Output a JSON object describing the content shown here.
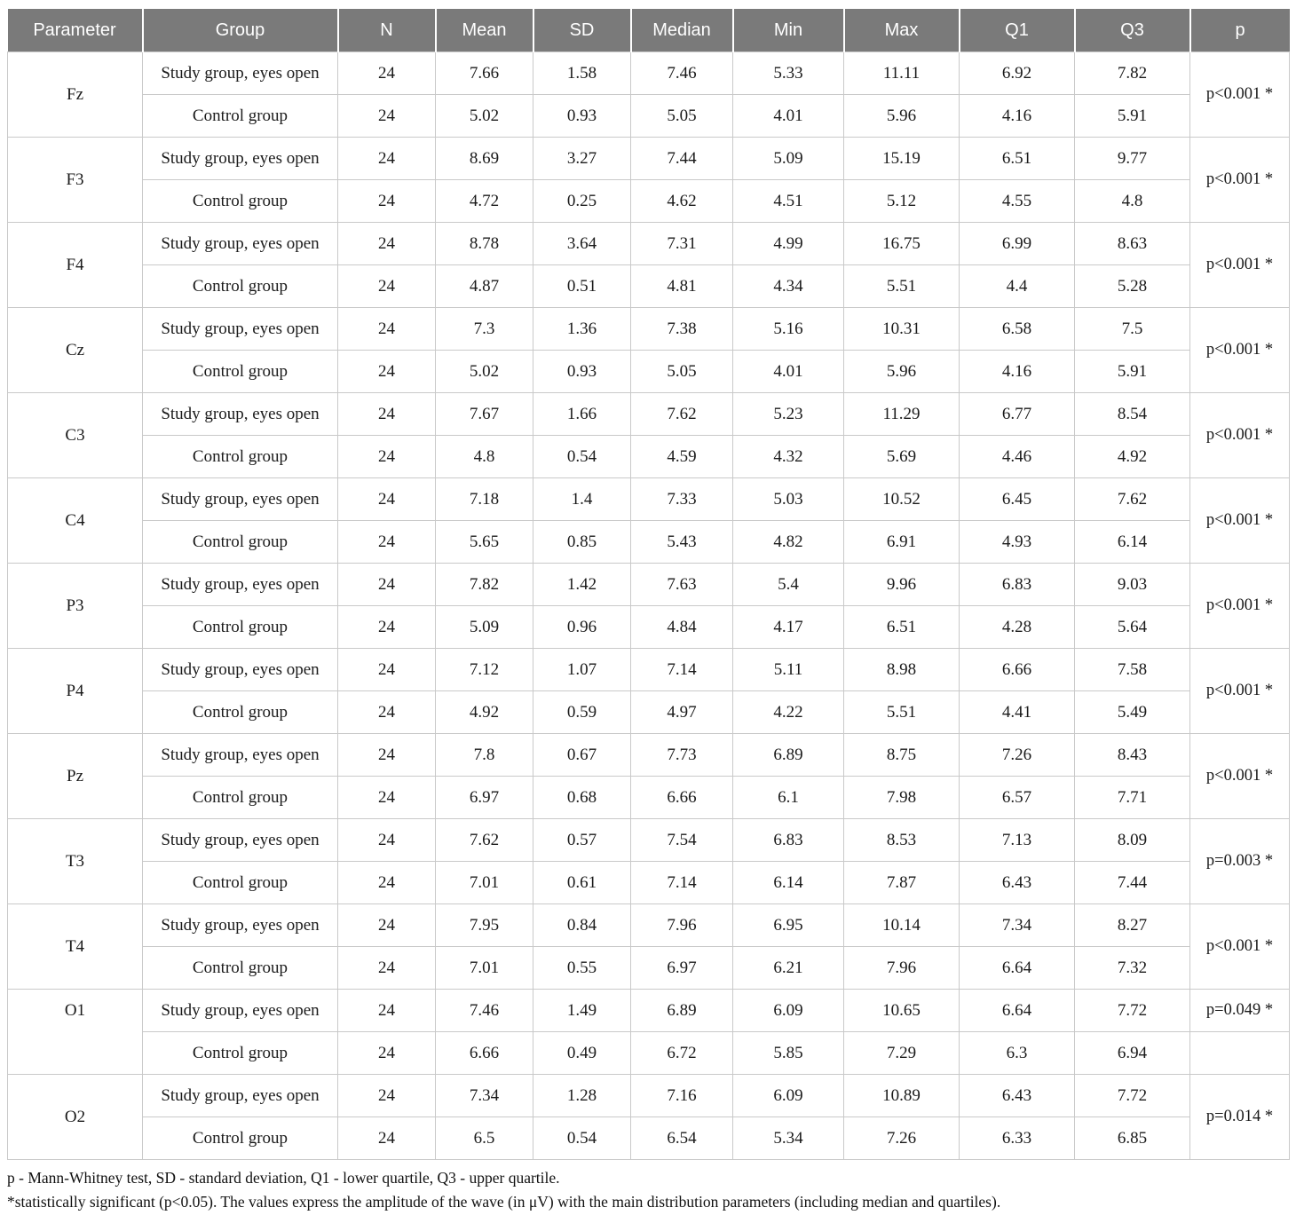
{
  "colors": {
    "header_bg": "#7a7a7a",
    "header_text": "#ffffff",
    "border": "#c9c9c9",
    "body_text": "#1a1a1a"
  },
  "table": {
    "headers": [
      "Parameter",
      "Group",
      "N",
      "Mean",
      "SD",
      "Median",
      "Min",
      "Max",
      "Q1",
      "Q3",
      "p"
    ],
    "blocks": [
      {
        "parameter": "Fz",
        "p": "p<0.001 *",
        "p_merged": true,
        "param_top": false,
        "rows": [
          {
            "group": "Study group, eyes open",
            "values": [
              "24",
              "7.66",
              "1.58",
              "7.46",
              "5.33",
              "11.11",
              "6.92",
              "7.82"
            ]
          },
          {
            "group": "Control group",
            "values": [
              "24",
              "5.02",
              "0.93",
              "5.05",
              "4.01",
              "5.96",
              "4.16",
              "5.91"
            ]
          }
        ]
      },
      {
        "parameter": "F3",
        "p": "p<0.001 *",
        "p_merged": true,
        "param_top": false,
        "rows": [
          {
            "group": "Study group, eyes open",
            "values": [
              "24",
              "8.69",
              "3.27",
              "7.44",
              "5.09",
              "15.19",
              "6.51",
              "9.77"
            ]
          },
          {
            "group": "Control group",
            "values": [
              "24",
              "4.72",
              "0.25",
              "4.62",
              "4.51",
              "5.12",
              "4.55",
              "4.8"
            ]
          }
        ]
      },
      {
        "parameter": "F4",
        "p": "p<0.001 *",
        "p_merged": true,
        "param_top": false,
        "rows": [
          {
            "group": "Study group, eyes open",
            "values": [
              "24",
              "8.78",
              "3.64",
              "7.31",
              "4.99",
              "16.75",
              "6.99",
              "8.63"
            ]
          },
          {
            "group": "Control group",
            "values": [
              "24",
              "4.87",
              "0.51",
              "4.81",
              "4.34",
              "5.51",
              "4.4",
              "5.28"
            ]
          }
        ]
      },
      {
        "parameter": "Cz",
        "p": "p<0.001 *",
        "p_merged": true,
        "param_top": false,
        "rows": [
          {
            "group": "Study group, eyes open",
            "values": [
              "24",
              "7.3",
              "1.36",
              "7.38",
              "5.16",
              "10.31",
              "6.58",
              "7.5"
            ]
          },
          {
            "group": "Control group",
            "values": [
              "24",
              "5.02",
              "0.93",
              "5.05",
              "4.01",
              "5.96",
              "4.16",
              "5.91"
            ]
          }
        ]
      },
      {
        "parameter": "C3",
        "p": "p<0.001 *",
        "p_merged": true,
        "param_top": false,
        "rows": [
          {
            "group": "Study group, eyes open",
            "values": [
              "24",
              "7.67",
              "1.66",
              "7.62",
              "5.23",
              "11.29",
              "6.77",
              "8.54"
            ]
          },
          {
            "group": "Control group",
            "values": [
              "24",
              "4.8",
              "0.54",
              "4.59",
              "4.32",
              "5.69",
              "4.46",
              "4.92"
            ]
          }
        ]
      },
      {
        "parameter": "C4",
        "p": "p<0.001 *",
        "p_merged": true,
        "param_top": false,
        "rows": [
          {
            "group": "Study group, eyes open",
            "values": [
              "24",
              "7.18",
              "1.4",
              "7.33",
              "5.03",
              "10.52",
              "6.45",
              "7.62"
            ]
          },
          {
            "group": "Control group",
            "values": [
              "24",
              "5.65",
              "0.85",
              "5.43",
              "4.82",
              "6.91",
              "4.93",
              "6.14"
            ]
          }
        ]
      },
      {
        "parameter": "P3",
        "p": "p<0.001 *",
        "p_merged": true,
        "param_top": false,
        "rows": [
          {
            "group": "Study group, eyes open",
            "values": [
              "24",
              "7.82",
              "1.42",
              "7.63",
              "5.4",
              "9.96",
              "6.83",
              "9.03"
            ]
          },
          {
            "group": "Control group",
            "values": [
              "24",
              "5.09",
              "0.96",
              "4.84",
              "4.17",
              "6.51",
              "4.28",
              "5.64"
            ]
          }
        ]
      },
      {
        "parameter": "P4",
        "p": "p<0.001 *",
        "p_merged": true,
        "param_top": false,
        "rows": [
          {
            "group": "Study group, eyes open",
            "values": [
              "24",
              "7.12",
              "1.07",
              "7.14",
              "5.11",
              "8.98",
              "6.66",
              "7.58"
            ]
          },
          {
            "group": "Control group",
            "values": [
              "24",
              "4.92",
              "0.59",
              "4.97",
              "4.22",
              "5.51",
              "4.41",
              "5.49"
            ]
          }
        ]
      },
      {
        "parameter": "Pz",
        "p": "p<0.001 *",
        "p_merged": true,
        "param_top": false,
        "rows": [
          {
            "group": "Study group, eyes open",
            "values": [
              "24",
              "7.8",
              "0.67",
              "7.73",
              "6.89",
              "8.75",
              "7.26",
              "8.43"
            ]
          },
          {
            "group": "Control group",
            "values": [
              "24",
              "6.97",
              "0.68",
              "6.66",
              "6.1",
              "7.98",
              "6.57",
              "7.71"
            ]
          }
        ]
      },
      {
        "parameter": "T3",
        "p": "p=0.003 *",
        "p_merged": true,
        "param_top": false,
        "rows": [
          {
            "group": "Study group, eyes open",
            "values": [
              "24",
              "7.62",
              "0.57",
              "7.54",
              "6.83",
              "8.53",
              "7.13",
              "8.09"
            ]
          },
          {
            "group": "Control group",
            "values": [
              "24",
              "7.01",
              "0.61",
              "7.14",
              "6.14",
              "7.87",
              "6.43",
              "7.44"
            ]
          }
        ]
      },
      {
        "parameter": "T4",
        "p": "p<0.001 *",
        "p_merged": true,
        "param_top": false,
        "rows": [
          {
            "group": "Study group, eyes open",
            "values": [
              "24",
              "7.95",
              "0.84",
              "7.96",
              "6.95",
              "10.14",
              "7.34",
              "8.27"
            ]
          },
          {
            "group": "Control group",
            "values": [
              "24",
              "7.01",
              "0.55",
              "6.97",
              "6.21",
              "7.96",
              "6.64",
              "7.32"
            ]
          }
        ]
      },
      {
        "parameter": "O1",
        "p": "p=0.049 *",
        "p_merged": false,
        "param_top": true,
        "rows": [
          {
            "group": "Study group, eyes open",
            "values": [
              "24",
              "7.46",
              "1.49",
              "6.89",
              "6.09",
              "10.65",
              "6.64",
              "7.72"
            ]
          },
          {
            "group": "Control group",
            "values": [
              "24",
              "6.66",
              "0.49",
              "6.72",
              "5.85",
              "7.29",
              "6.3",
              "6.94"
            ]
          }
        ]
      },
      {
        "parameter": "O2",
        "p": "p=0.014 *",
        "p_merged": true,
        "param_top": false,
        "rows": [
          {
            "group": "Study group, eyes open",
            "values": [
              "24",
              "7.34",
              "1.28",
              "7.16",
              "6.09",
              "10.89",
              "6.43",
              "7.72"
            ]
          },
          {
            "group": "Control group",
            "values": [
              "24",
              "6.5",
              "0.54",
              "6.54",
              "5.34",
              "7.26",
              "6.33",
              "6.85"
            ]
          }
        ]
      }
    ]
  },
  "footnotes": {
    "line1": "p - Mann-Whitney test, SD - standard deviation, Q1 - lower quartile, Q3 - upper quartile.",
    "line2": "*statistically significant (p<0.05). The values express the amplitude of the wave (in μV) with the main distribution parameters (including median and quartiles)."
  }
}
